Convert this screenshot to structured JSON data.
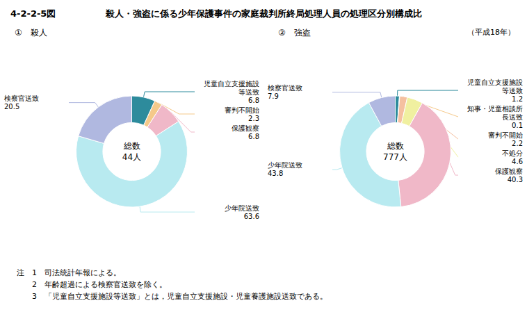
{
  "title": "殺人・強盗に係る少年保護事件の家庭裁判所終局処理人員の処理区分別構成比",
  "subtitle": "（平成18年）",
  "annotations": [
    "4-2-2-5図",
    "注　1　司法統計年報による。",
    "　　2　年齢超過による検察官送致を除く。",
    "　　3　「児童自立支援施設等送致」とは，児童自立支援施設・児童養護施設送致である。"
  ],
  "chart_data": [
    {
      "type": "pie",
      "title": "①　殺人",
      "categories": [
        "児童自立支援施設等送致",
        "審判不開始",
        "保護観察",
        "少年院送致",
        "検察官送致"
      ],
      "values": [
        6.8,
        2.3,
        6.8,
        63.6,
        20.5
      ],
      "colors": [
        "#2d8b9c",
        "#f5c98a",
        "#f0b8c8",
        "#b8eaf0",
        "#b0b8e0"
      ],
      "data_labels": true,
      "annotations": [
        "総数\n44人"
      ]
    },
    {
      "type": "pie",
      "title": "②　強盗",
      "categories": [
        "児童自立支援施設等送致",
        "知事・児童相談所長送致",
        "審判不開始",
        "不処分",
        "保護観察",
        "少年院送致",
        "検察官送致"
      ],
      "values": [
        1.2,
        0.1,
        2.2,
        4.6,
        40.3,
        43.8,
        7.9
      ],
      "colors": [
        "#2d8b9c",
        "#f5c98a",
        "#f5c0a0",
        "#f0f0a0",
        "#f0b8c8",
        "#b8eaf0",
        "#b0b8e0"
      ],
      "data_labels": true,
      "annotations": [
        "総数\n777人"
      ]
    }
  ]
}
